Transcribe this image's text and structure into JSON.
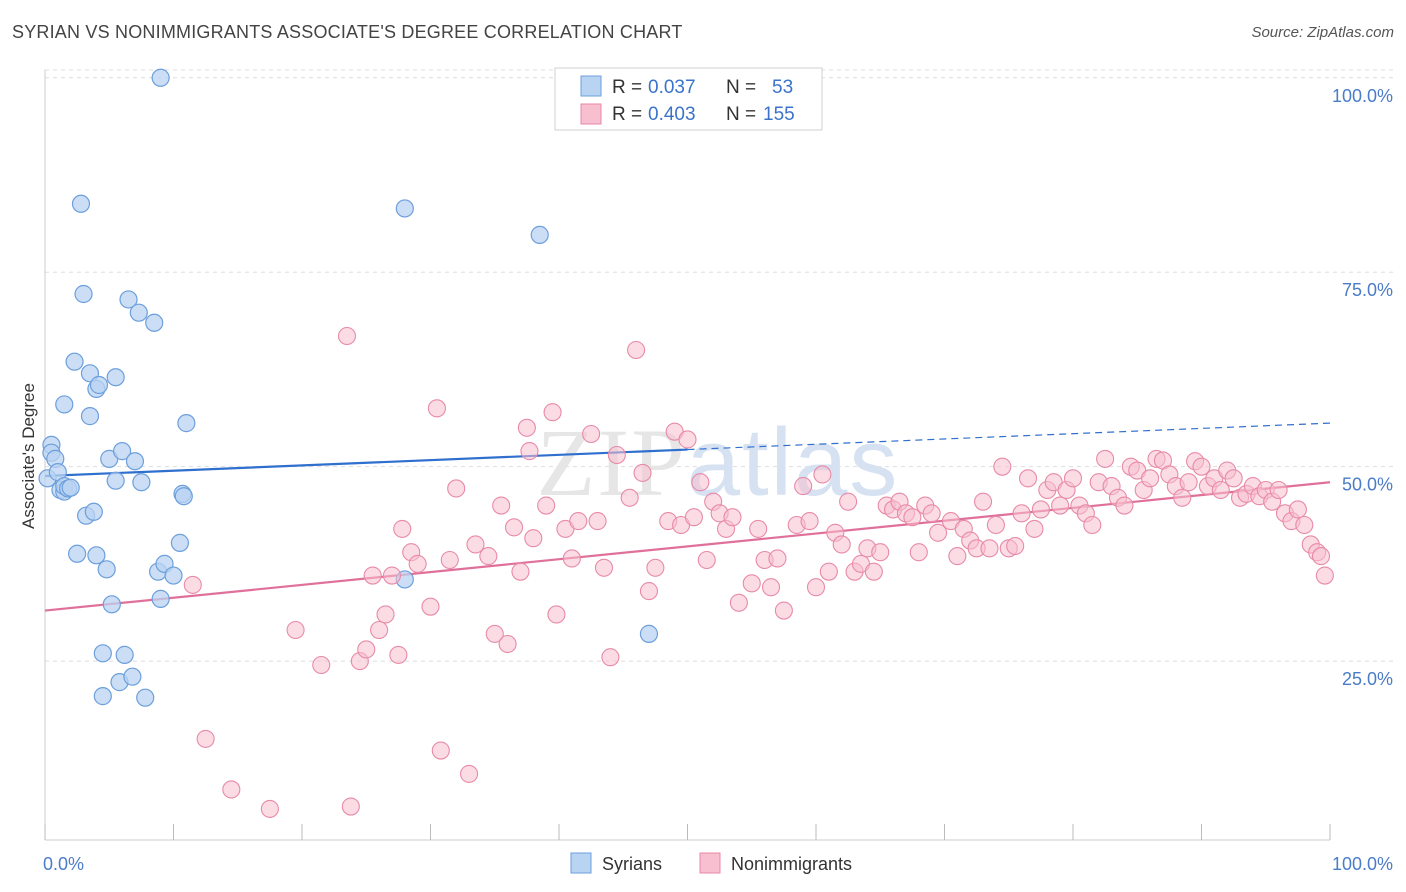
{
  "title": "SYRIAN VS NONIMMIGRANTS ASSOCIATE'S DEGREE CORRELATION CHART",
  "source": "Source: ZipAtlas.com",
  "watermark": "ZIPatlas",
  "colors": {
    "syrians_fill": "#b9d3f2",
    "syrians_stroke": "#6c9fdc",
    "syrians_line": "#2f6fce",
    "nonimmigrants_fill": "#f7bfd0",
    "nonimmigrants_stroke": "#e88aa8",
    "nonimmigrants_line": "#e0709a",
    "grid": "#dddddd",
    "tick_text": "#4a7cc7"
  },
  "chart_data": {
    "type": "scatter",
    "title": "SYRIAN VS NONIMMIGRANTS ASSOCIATE'S DEGREE CORRELATION CHART",
    "xlabel": "",
    "ylabel": "Associate's Degree",
    "xlim": [
      0,
      100
    ],
    "ylim": [
      2,
      101
    ],
    "x_tick_labels": [
      "0.0%",
      "100.0%"
    ],
    "y_ticks": [
      25,
      50,
      75,
      100
    ],
    "y_tick_labels": [
      "25.0%",
      "50.0%",
      "75.0%",
      "100.0%"
    ],
    "grid": true,
    "legend_position": "top-center",
    "legend": [
      {
        "r_label": "R =",
        "r_value": "0.037",
        "n_label": "N =",
        "n_value": "53"
      },
      {
        "r_label": "R =",
        "r_value": "0.403",
        "n_label": "N =",
        "n_value": "155"
      }
    ],
    "bottom_legend": [
      "Syrians",
      "Nonimmigrants"
    ],
    "series": [
      {
        "name": "Syrians",
        "trend": {
          "x0": 0,
          "y0": 48.8,
          "x1": 50,
          "y1": 52.2,
          "dashed_to_x": 100,
          "dashed_to_y": 55.6
        },
        "points": [
          [
            0.2,
            48.5
          ],
          [
            0.5,
            52.8
          ],
          [
            0.5,
            51.8
          ],
          [
            0.8,
            51.0
          ],
          [
            1.0,
            49.3
          ],
          [
            1.2,
            47.0
          ],
          [
            1.5,
            46.8
          ],
          [
            1.5,
            58.0
          ],
          [
            1.5,
            47.5
          ],
          [
            1.8,
            47.2
          ],
          [
            2.0,
            47.3
          ],
          [
            2.3,
            63.5
          ],
          [
            2.5,
            38.8
          ],
          [
            2.8,
            83.8
          ],
          [
            3.0,
            72.2
          ],
          [
            3.2,
            43.7
          ],
          [
            3.5,
            56.5
          ],
          [
            3.5,
            62.0
          ],
          [
            3.8,
            44.2
          ],
          [
            4.0,
            60.0
          ],
          [
            4.0,
            38.6
          ],
          [
            4.2,
            60.5
          ],
          [
            4.5,
            26.0
          ],
          [
            4.5,
            20.5
          ],
          [
            4.8,
            36.8
          ],
          [
            5.0,
            51.0
          ],
          [
            5.2,
            32.3
          ],
          [
            5.5,
            61.5
          ],
          [
            5.5,
            48.2
          ],
          [
            5.8,
            22.3
          ],
          [
            6.0,
            52.0
          ],
          [
            6.2,
            25.8
          ],
          [
            6.5,
            71.5
          ],
          [
            6.8,
            23.0
          ],
          [
            7.0,
            50.7
          ],
          [
            7.3,
            69.8
          ],
          [
            7.5,
            48.0
          ],
          [
            7.8,
            20.3
          ],
          [
            8.5,
            68.5
          ],
          [
            8.8,
            36.5
          ],
          [
            9.0,
            33.0
          ],
          [
            9.0,
            100.0
          ],
          [
            9.3,
            37.5
          ],
          [
            10.0,
            36.0
          ],
          [
            10.5,
            40.2
          ],
          [
            10.7,
            46.5
          ],
          [
            10.8,
            46.2
          ],
          [
            11.0,
            55.6
          ],
          [
            28.0,
            83.2
          ],
          [
            28.0,
            35.5
          ],
          [
            38.5,
            79.8
          ],
          [
            47.0,
            28.5
          ]
        ]
      },
      {
        "name": "Nonimmigrants",
        "trend": {
          "x0": 0,
          "y0": 31.5,
          "x1": 100,
          "y1": 48.0
        },
        "points": [
          [
            11.5,
            34.8
          ],
          [
            12.5,
            15.0
          ],
          [
            14.5,
            8.5
          ],
          [
            17.5,
            6.0
          ],
          [
            19.5,
            29.0
          ],
          [
            21.5,
            24.5
          ],
          [
            23.5,
            66.8
          ],
          [
            23.8,
            6.3
          ],
          [
            24.5,
            25.0
          ],
          [
            25.0,
            26.5
          ],
          [
            25.5,
            36.0
          ],
          [
            26.0,
            29.0
          ],
          [
            26.5,
            31.0
          ],
          [
            27.0,
            36.0
          ],
          [
            27.5,
            25.8
          ],
          [
            27.8,
            42.0
          ],
          [
            28.5,
            39.0
          ],
          [
            29.0,
            37.5
          ],
          [
            30.0,
            32.0
          ],
          [
            30.5,
            57.5
          ],
          [
            30.8,
            13.5
          ],
          [
            31.5,
            38.0
          ],
          [
            32.0,
            47.2
          ],
          [
            33.0,
            10.5
          ],
          [
            33.5,
            40.0
          ],
          [
            34.5,
            38.5
          ],
          [
            35.0,
            28.5
          ],
          [
            35.5,
            45.0
          ],
          [
            36.0,
            27.2
          ],
          [
            36.5,
            42.2
          ],
          [
            37.0,
            36.5
          ],
          [
            37.5,
            55.0
          ],
          [
            37.7,
            52.0
          ],
          [
            38.0,
            40.8
          ],
          [
            39.0,
            45.0
          ],
          [
            39.5,
            57.0
          ],
          [
            39.8,
            31.0
          ],
          [
            40.5,
            42.0
          ],
          [
            41.0,
            38.2
          ],
          [
            41.5,
            43.0
          ],
          [
            42.5,
            54.2
          ],
          [
            43.0,
            43.0
          ],
          [
            43.5,
            37.0
          ],
          [
            44.0,
            25.5
          ],
          [
            44.5,
            51.5
          ],
          [
            45.5,
            46.0
          ],
          [
            46.0,
            65.0
          ],
          [
            46.5,
            49.2
          ],
          [
            47.0,
            34.0
          ],
          [
            47.5,
            37.0
          ],
          [
            48.5,
            43.0
          ],
          [
            49.0,
            54.5
          ],
          [
            49.5,
            42.5
          ],
          [
            50.0,
            53.5
          ],
          [
            50.5,
            43.5
          ],
          [
            51.0,
            48.0
          ],
          [
            51.5,
            38.0
          ],
          [
            52.0,
            45.5
          ],
          [
            52.5,
            44.0
          ],
          [
            53.0,
            42.0
          ],
          [
            53.5,
            43.5
          ],
          [
            54.0,
            32.5
          ],
          [
            55.0,
            35.0
          ],
          [
            55.5,
            42.0
          ],
          [
            56.0,
            38.0
          ],
          [
            56.5,
            34.5
          ],
          [
            57.0,
            38.2
          ],
          [
            57.5,
            31.5
          ],
          [
            58.5,
            42.5
          ],
          [
            59.0,
            47.5
          ],
          [
            59.5,
            43.0
          ],
          [
            60.0,
            34.5
          ],
          [
            60.5,
            49.0
          ],
          [
            61.0,
            36.5
          ],
          [
            61.5,
            41.5
          ],
          [
            62.0,
            40.0
          ],
          [
            62.5,
            45.5
          ],
          [
            63.0,
            36.5
          ],
          [
            63.5,
            37.5
          ],
          [
            64.0,
            39.5
          ],
          [
            64.5,
            36.5
          ],
          [
            65.0,
            39.0
          ],
          [
            65.5,
            45.0
          ],
          [
            66.0,
            44.5
          ],
          [
            66.5,
            45.5
          ],
          [
            67.0,
            44.0
          ],
          [
            67.5,
            43.5
          ],
          [
            68.0,
            39.0
          ],
          [
            68.5,
            45.0
          ],
          [
            69.0,
            44.0
          ],
          [
            69.5,
            41.5
          ],
          [
            70.5,
            43.0
          ],
          [
            71.0,
            38.5
          ],
          [
            71.5,
            42.0
          ],
          [
            72.0,
            40.5
          ],
          [
            72.5,
            39.5
          ],
          [
            73.0,
            45.5
          ],
          [
            73.5,
            39.5
          ],
          [
            74.0,
            42.5
          ],
          [
            74.5,
            50.0
          ],
          [
            75.0,
            39.5
          ],
          [
            75.5,
            39.8
          ],
          [
            76.0,
            44.0
          ],
          [
            76.5,
            48.5
          ],
          [
            77.0,
            42.0
          ],
          [
            77.5,
            44.5
          ],
          [
            78.0,
            47.0
          ],
          [
            78.5,
            48.0
          ],
          [
            79.0,
            45.0
          ],
          [
            79.5,
            47.0
          ],
          [
            80.0,
            48.5
          ],
          [
            80.5,
            45.0
          ],
          [
            81.0,
            44.0
          ],
          [
            81.5,
            42.5
          ],
          [
            82.0,
            48.0
          ],
          [
            82.5,
            51.0
          ],
          [
            83.0,
            47.5
          ],
          [
            83.5,
            46.0
          ],
          [
            84.0,
            45.0
          ],
          [
            84.5,
            50.0
          ],
          [
            85.0,
            49.5
          ],
          [
            85.5,
            47.0
          ],
          [
            86.0,
            48.5
          ],
          [
            86.5,
            51.0
          ],
          [
            87.0,
            50.8
          ],
          [
            87.5,
            49.0
          ],
          [
            88.0,
            47.5
          ],
          [
            88.5,
            46.0
          ],
          [
            89.0,
            48.0
          ],
          [
            89.5,
            50.7
          ],
          [
            90.0,
            50.0
          ],
          [
            90.5,
            47.5
          ],
          [
            91.0,
            48.5
          ],
          [
            91.5,
            47.0
          ],
          [
            92.0,
            49.5
          ],
          [
            92.5,
            48.5
          ],
          [
            93.0,
            46.0
          ],
          [
            93.5,
            46.5
          ],
          [
            94.0,
            47.5
          ],
          [
            94.5,
            46.2
          ],
          [
            95.0,
            47.0
          ],
          [
            95.5,
            45.5
          ],
          [
            96.0,
            47.0
          ],
          [
            96.5,
            44.0
          ],
          [
            97.0,
            43.0
          ],
          [
            97.5,
            44.5
          ],
          [
            98.0,
            42.5
          ],
          [
            98.5,
            40.0
          ],
          [
            99.0,
            39.0
          ],
          [
            99.3,
            38.5
          ],
          [
            99.6,
            36.0
          ]
        ]
      }
    ]
  }
}
